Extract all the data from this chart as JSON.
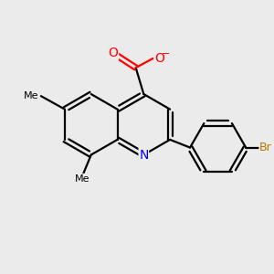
{
  "background_color": "#ebebeb",
  "atom_colors": {
    "C": "#000000",
    "N": "#0000ff",
    "O": "#ff0000",
    "Br": "#b87800",
    "Me": "#000000"
  },
  "bond_color": "#000000",
  "bond_width": 1.6,
  "font_size_atom": 10,
  "font_size_me": 8,
  "font_size_br": 9
}
